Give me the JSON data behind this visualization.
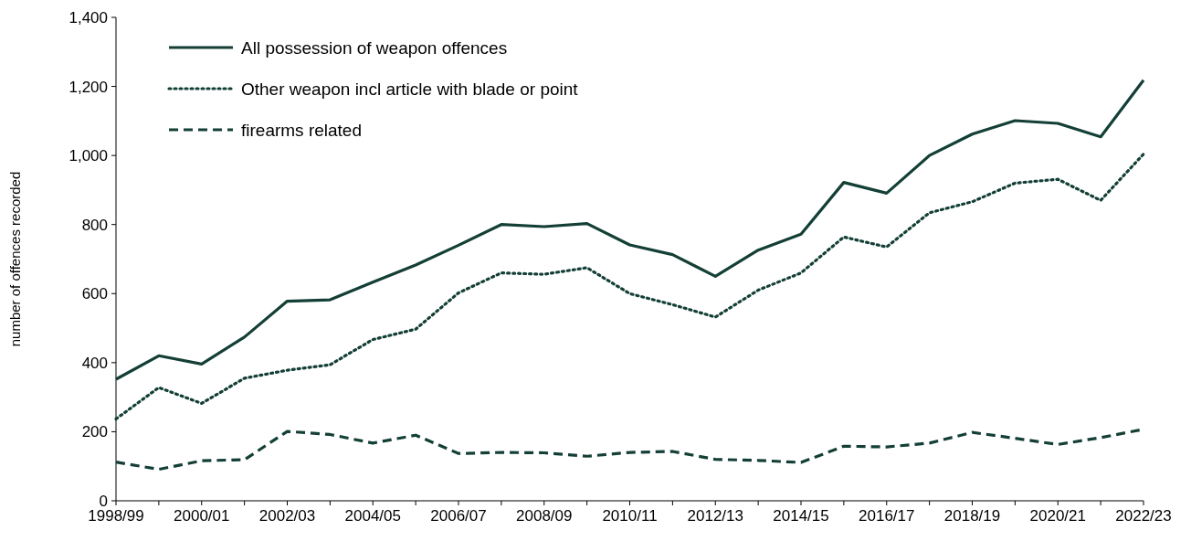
{
  "chart_data": {
    "type": "line",
    "ylabel": "number of offences recorded",
    "categories": [
      "1998/99",
      null,
      "2000/01",
      null,
      "2002/03",
      null,
      "2004/05",
      null,
      "2006/07",
      null,
      "2008/09",
      null,
      "2010/11",
      null,
      "2012/13",
      null,
      "2014/15",
      null,
      "2016/17",
      null,
      "2018/19",
      null,
      "2020/21",
      null,
      "2022/23"
    ],
    "series": [
      {
        "name": "All possession of weapon offences",
        "color": "#133f36",
        "line_style": "solid",
        "values": [
          352,
          420,
          396,
          474,
          578,
          582,
          633,
          683,
          740,
          800,
          794,
          803,
          741,
          713,
          650,
          726,
          772,
          922,
          891,
          1000,
          1062,
          1101,
          1093,
          1054,
          1218
        ]
      },
      {
        "name": "Other weapon incl article with blade or point",
        "color": "#133f36",
        "line_style": "dotted",
        "values": [
          237,
          328,
          282,
          355,
          378,
          394,
          467,
          497,
          602,
          660,
          656,
          675,
          600,
          568,
          532,
          610,
          660,
          764,
          735,
          834,
          866,
          920,
          931,
          870,
          1004
        ]
      },
      {
        "name": "firearms related",
        "color": "#133f36",
        "line_style": "dashed",
        "values": [
          112,
          91,
          116,
          119,
          201,
          192,
          167,
          190,
          137,
          140,
          139,
          129,
          140,
          143,
          120,
          117,
          111,
          158,
          156,
          167,
          198,
          181,
          163,
          183,
          207
        ]
      }
    ],
    "ylim": [
      0,
      1400
    ],
    "yticks": [
      0,
      200,
      400,
      600,
      800,
      {
        "value": 1000,
        "label": "1,000"
      },
      {
        "value": 1200,
        "label": "1,200"
      },
      {
        "value": 1400,
        "label": "1,400"
      }
    ],
    "grid": false,
    "legend": "top left",
    "marker": "none"
  }
}
